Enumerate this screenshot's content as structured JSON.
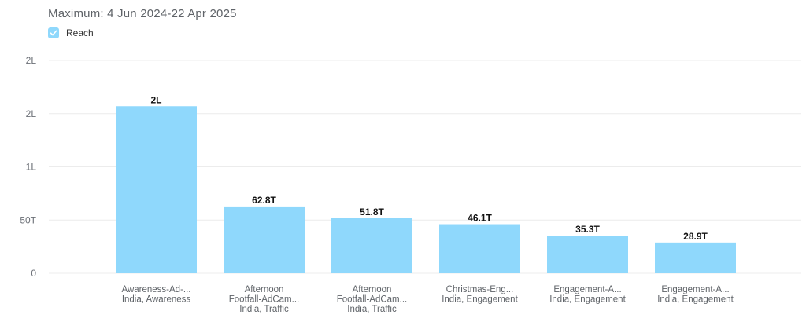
{
  "header": {
    "subtitle": "Maximum: 4 Jun 2024-22 Apr 2025"
  },
  "legend": {
    "label": "Reach",
    "checked": true,
    "color": "#8fd8fc"
  },
  "chart_data": {
    "type": "bar",
    "title": "",
    "subtitle": "Maximum: 4 Jun 2024-22 Apr 2025",
    "xlabel": "",
    "ylabel": "",
    "categories": [
      [
        "Awareness-Ad-...",
        "India, Awareness"
      ],
      [
        "Afternoon",
        "Footfall-AdCam...",
        "India, Traffic"
      ],
      [
        "Afternoon",
        "Footfall-AdCam...",
        "India, Traffic"
      ],
      [
        "Christmas-Eng...",
        "India, Engagement"
      ],
      [
        "Engagement-A...",
        "India, Engagement"
      ],
      [
        "Engagement-A...",
        "India, Engagement"
      ]
    ],
    "series": [
      {
        "name": "Reach",
        "color": "#8fd8fc",
        "values": [
          157000,
          62800,
          51800,
          46100,
          35300,
          28900
        ],
        "labels": [
          "2L",
          "62.8T",
          "51.8T",
          "46.1T",
          "35.3T",
          "28.9T"
        ]
      }
    ],
    "ylim": [
      0,
      200000
    ],
    "yticks": [
      {
        "value": 0,
        "label": "0"
      },
      {
        "value": 50000,
        "label": "50T"
      },
      {
        "value": 100000,
        "label": "1L"
      },
      {
        "value": 150000,
        "label": "2L"
      },
      {
        "value": 200000,
        "label": "2L"
      }
    ],
    "grid": true,
    "legend_position": "top-left"
  }
}
